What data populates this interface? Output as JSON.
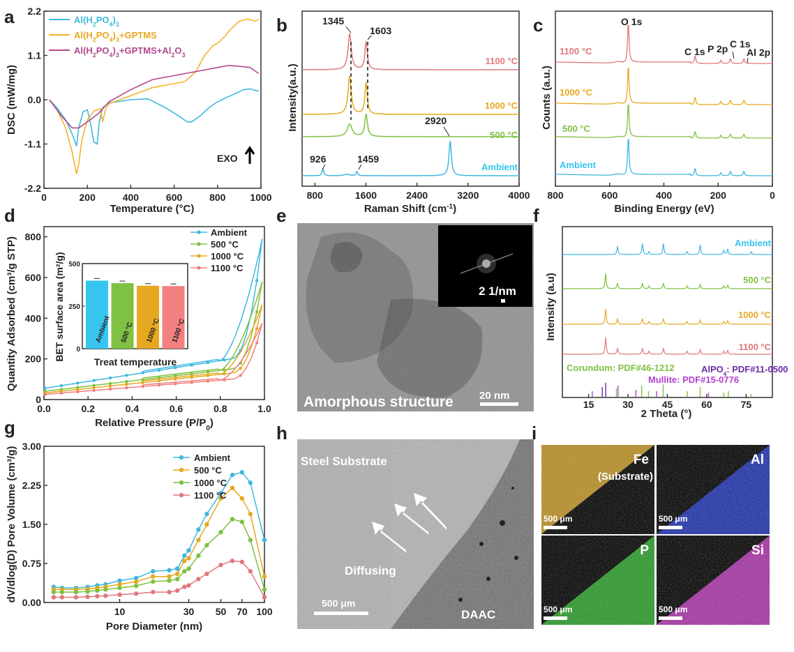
{
  "colors": {
    "blue": "#3fb8e0",
    "orange": "#f2b32c",
    "purple": "#b4478e",
    "red": "#e0787b",
    "green": "#7fc142",
    "gold": "#e6a820",
    "pink": "#f2807e",
    "cyan": "#36c5ef",
    "black": "#000000",
    "white": "#ffffff"
  },
  "chart_data": [
    {
      "panel": "a",
      "type": "line",
      "xlabel": "Temperature (°C)",
      "ylabel": "DSC (mW/mg)",
      "xlim": [
        0,
        1000
      ],
      "ylim": [
        -2.2,
        2.2
      ],
      "xticks": [
        "0",
        "200",
        "400",
        "600",
        "800",
        "1000"
      ],
      "yticks": [
        "-2.2",
        "-1.1",
        "0.0",
        "1.1",
        "2.2"
      ],
      "annotation": "EXO",
      "series": [
        {
          "name": "Al(H2PO4)3",
          "name_html": "Al(H<sub>2</sub>PO<sub>4</sub>)<sub>3</sub>",
          "color": "blue",
          "x": [
            25,
            60,
            100,
            130,
            150,
            160,
            180,
            200,
            215,
            230,
            245,
            255,
            270,
            300,
            400,
            480,
            560,
            620,
            660,
            680,
            720,
            760,
            800,
            860,
            920,
            950,
            980,
            990
          ],
          "y": [
            0.0,
            -0.2,
            -0.5,
            -0.85,
            -1.15,
            -0.7,
            -0.3,
            -0.25,
            -0.6,
            -1.05,
            -1.1,
            -0.55,
            -0.2,
            -0.08,
            0.0,
            0.02,
            -0.2,
            -0.4,
            -0.55,
            -0.55,
            -0.4,
            -0.2,
            -0.05,
            0.1,
            0.25,
            0.27,
            0.22,
            0.22
          ]
        },
        {
          "name": "Al(H2PO4)3+GPTMS",
          "name_html": "Al(H<sub>2</sub>PO<sub>4</sub>)<sub>3</sub>+GPTMS",
          "color": "orange",
          "x": [
            25,
            60,
            100,
            130,
            150,
            160,
            175,
            200,
            230,
            260,
            270,
            285,
            300,
            350,
            400,
            500,
            600,
            650,
            700,
            740,
            780,
            800,
            830,
            860,
            900,
            940,
            975,
            990
          ],
          "y": [
            0.0,
            -0.25,
            -0.7,
            -1.3,
            -1.85,
            -1.6,
            -1.0,
            -0.5,
            -0.28,
            -0.22,
            -0.55,
            -0.22,
            -0.1,
            0.0,
            0.1,
            0.3,
            0.4,
            0.45,
            0.7,
            1.1,
            1.35,
            1.4,
            1.55,
            1.75,
            1.95,
            2.0,
            1.95,
            2.0
          ]
        },
        {
          "name": "Al(H2PO4)3+GPTMS+Al2O3",
          "name_html": "Al(H<sub>2</sub>PO<sub>4</sub>)<sub>3</sub>+GPTMS+Al<sub>2</sub>O<sub>3</sub>",
          "color": "purple",
          "x": [
            25,
            80,
            130,
            160,
            200,
            250,
            300,
            400,
            500,
            600,
            700,
            800,
            850,
            900,
            950,
            990
          ],
          "y": [
            0.0,
            -0.4,
            -0.7,
            -0.7,
            -0.55,
            -0.35,
            -0.05,
            0.25,
            0.5,
            0.6,
            0.7,
            0.8,
            0.85,
            0.83,
            0.8,
            0.65
          ]
        }
      ]
    },
    {
      "panel": "b",
      "type": "line",
      "xlabel": "Raman Shift (cm-1)",
      "xlabel_pre": "Raman Shift (cm",
      "xlabel_sup": "-1",
      "xlabel_post": ")",
      "ylabel": "Intensity(a.u.)",
      "xlim": [
        600,
        4000
      ],
      "xticks": [
        "800",
        "1600",
        "2400",
        "3200",
        "4000"
      ],
      "peaks": [
        "1345",
        "1603",
        "2920",
        "926",
        "1459"
      ],
      "series": [
        {
          "name": "1100 °C",
          "color": "red",
          "baseline": 100,
          "peaks": [
            [
              1345,
              52,
              60
            ],
            [
              1603,
              40,
              45
            ]
          ]
        },
        {
          "name": "1000 °C",
          "color": "gold",
          "baseline": 164,
          "peaks": [
            [
              1345,
              55,
              60
            ],
            [
              1603,
              45,
              45
            ]
          ]
        },
        {
          "name": "500 °C",
          "color": "green",
          "baseline": 196,
          "peaks": [
            [
              1345,
              18,
              90
            ],
            [
              1603,
              32,
              50
            ]
          ]
        },
        {
          "name": "Ambient",
          "color": "blue",
          "baseline": 252,
          "peaks": [
            [
              926,
              10,
              30
            ],
            [
              1459,
              6,
              30
            ],
            [
              2920,
              50,
              45
            ],
            [
              1300,
              2,
              100
            ]
          ]
        }
      ]
    },
    {
      "panel": "c",
      "type": "line",
      "xlabel": "Binding Energy (eV)",
      "ylabel": "Counts (a.u.)",
      "xlim": [
        800,
        0
      ],
      "xticks": [
        "800",
        "600",
        "400",
        "200",
        "0"
      ],
      "peak_labels": [
        "O 1s",
        "C 1s",
        "P 2p",
        "C 1s",
        "Al 2p"
      ],
      "series": [
        {
          "name": "1100 °C",
          "color": "red",
          "baseline": 91
        },
        {
          "name": "1000 °C",
          "color": "gold",
          "baseline": 150
        },
        {
          "name": "500 °C",
          "color": "green",
          "baseline": 198
        },
        {
          "name": "Ambient",
          "color": "blue",
          "baseline": 252
        }
      ]
    },
    {
      "panel": "d",
      "type": "line",
      "xlabel": "Relative Pressure (P/P0)",
      "xlabel_pre": "Relative Pressure (P/P",
      "xlabel_sub": "0",
      "xlabel_post": ")",
      "ylabel": "Quantity Adsorbed (cm³/g STP)",
      "xlim": [
        0,
        1
      ],
      "ylim": [
        0,
        850
      ],
      "xticks": [
        "0.0",
        "0.2",
        "0.4",
        "0.6",
        "0.8",
        "1.0"
      ],
      "yticks": [
        "0",
        "200",
        "400",
        "600",
        "800"
      ],
      "series": [
        {
          "name": "Ambient",
          "color": "blue",
          "end": 790
        },
        {
          "name": "500 °C",
          "color": "green",
          "end": 580
        },
        {
          "name": "1000 °C",
          "color": "gold",
          "end": 465
        },
        {
          "name": "1100 °C",
          "color": "pink",
          "end": 375
        }
      ],
      "inset": {
        "type": "bar",
        "ylabel": "BET surface area (m²/g)",
        "xlabel": "Treat temperature",
        "yticks": [
          "0",
          "250",
          "500"
        ],
        "ylim": [
          0,
          500
        ],
        "categories": [
          "Ambient",
          "500 °C",
          "1000 °C",
          "1100 °C"
        ],
        "values": [
          400,
          385,
          370,
          368
        ],
        "colors": [
          "cyan",
          "green",
          "gold",
          "pink"
        ]
      }
    },
    {
      "panel": "e",
      "type": "image",
      "caption": "Amorphous structure",
      "scale_bar": "20 nm",
      "inset_scale": "2 1/nm"
    },
    {
      "panel": "f",
      "type": "line",
      "xlabel": "2 Theta (°)",
      "ylabel": "Intensity (a.u)",
      "xlim": [
        5,
        85
      ],
      "xticks": [
        "15",
        "30",
        "45",
        "60",
        "75"
      ],
      "series": [
        {
          "name": "Ambient",
          "color": "blue",
          "baseline": 365
        },
        {
          "name": "500 °C",
          "color": "green",
          "baseline": 414
        },
        {
          "name": "1000 °C",
          "color": "gold",
          "baseline": 465
        },
        {
          "name": "1100 °C",
          "color": "red",
          "baseline": 508
        }
      ],
      "references": [
        {
          "label": "Corundum: PDF#46-1212",
          "color": "green"
        },
        {
          "label": "AlPO4: PDF#11-0500",
          "label_pre": "AlPO",
          "label_sub": "4",
          "label_post": ": PDF#11-0500",
          "color": "purple"
        },
        {
          "label": "Mullite: PDF#15-0776",
          "color": "purple"
        }
      ]
    },
    {
      "panel": "g",
      "type": "line",
      "xlabel": "Pore Diameter (nm)",
      "ylabel": "dV/dlog(D) Pore Volume (cm³/g)",
      "xscale": "log",
      "xlim": [
        3,
        100
      ],
      "ylim": [
        0,
        3
      ],
      "xticks": [
        "10",
        "30",
        "50",
        "70",
        "100"
      ],
      "yticks": [
        "0.00",
        "0.75",
        "1.50",
        "2.25",
        "3.00"
      ],
      "series": [
        {
          "name": "Ambient",
          "color": "blue",
          "x": [
            3.5,
            4,
            5,
            6,
            7,
            8,
            10,
            13,
            17,
            22,
            25,
            28,
            30,
            35,
            40,
            50,
            60,
            70,
            80,
            100
          ],
          "y": [
            0.3,
            0.28,
            0.28,
            0.3,
            0.33,
            0.35,
            0.42,
            0.47,
            0.6,
            0.62,
            0.65,
            0.9,
            1.0,
            1.4,
            1.7,
            2.1,
            2.45,
            2.5,
            2.3,
            1.2
          ]
        },
        {
          "name": "500 °C",
          "color": "gold",
          "x": [
            3.5,
            4,
            5,
            6,
            7,
            8,
            10,
            13,
            17,
            22,
            25,
            28,
            30,
            35,
            40,
            50,
            60,
            70,
            80,
            100
          ],
          "y": [
            0.25,
            0.25,
            0.25,
            0.26,
            0.28,
            0.3,
            0.35,
            0.4,
            0.5,
            0.5,
            0.55,
            0.8,
            0.85,
            1.2,
            1.5,
            2.0,
            2.2,
            2.0,
            1.7,
            0.5
          ]
        },
        {
          "name": "1000 °C",
          "color": "green",
          "x": [
            3.5,
            4,
            5,
            6,
            7,
            8,
            10,
            13,
            17,
            22,
            25,
            28,
            30,
            35,
            40,
            50,
            60,
            70,
            80,
            100
          ],
          "y": [
            0.2,
            0.2,
            0.2,
            0.21,
            0.23,
            0.25,
            0.28,
            0.32,
            0.4,
            0.42,
            0.45,
            0.6,
            0.65,
            0.9,
            1.1,
            1.35,
            1.6,
            1.55,
            1.2,
            0.25
          ]
        },
        {
          "name": "1100 °C",
          "color": "red",
          "x": [
            3.5,
            4,
            5,
            6,
            7,
            8,
            10,
            13,
            17,
            22,
            25,
            28,
            30,
            35,
            40,
            50,
            60,
            70,
            80,
            100
          ],
          "y": [
            0.1,
            0.1,
            0.1,
            0.11,
            0.12,
            0.13,
            0.15,
            0.17,
            0.2,
            0.2,
            0.23,
            0.3,
            0.33,
            0.45,
            0.55,
            0.72,
            0.8,
            0.78,
            0.6,
            0.1
          ]
        }
      ]
    },
    {
      "panel": "h",
      "type": "image",
      "labels": [
        "Steel Substrate",
        "Diffusing",
        "DAAC"
      ],
      "scale_bar": "500 μm"
    },
    {
      "panel": "i",
      "type": "image",
      "maps": [
        {
          "label": "Fe",
          "sub": "(Substrate)",
          "color": "#d7a629"
        },
        {
          "label": "Al",
          "sub": "",
          "color": "#2338c8"
        },
        {
          "label": "P",
          "sub": "",
          "color": "#2fb32f"
        },
        {
          "label": "Si",
          "sub": "",
          "color": "#c13ac0"
        }
      ],
      "scale_bar": "500 μm"
    }
  ],
  "panel_labels": [
    "a",
    "b",
    "c",
    "d",
    "e",
    "f",
    "g",
    "h",
    "i"
  ]
}
